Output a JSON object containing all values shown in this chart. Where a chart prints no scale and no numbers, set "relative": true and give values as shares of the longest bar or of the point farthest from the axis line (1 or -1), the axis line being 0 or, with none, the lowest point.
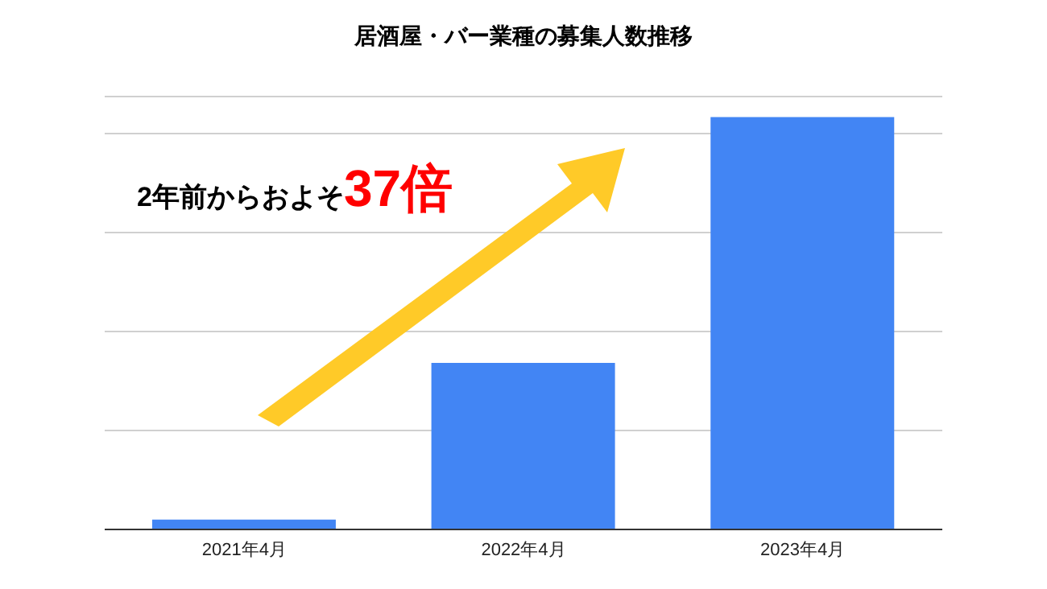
{
  "chart_data": {
    "type": "bar",
    "title": "居酒屋・バー業種の募集人数推移",
    "categories": [
      "2021年4月",
      "2022年4月",
      "2023年4月"
    ],
    "relative": true,
    "values": [
      0.024,
      0.404,
      1
    ],
    "color": "#4285f4",
    "grid": "y",
    "annotations": [
      "2年前からおよそ",
      "37倍"
    ]
  }
}
